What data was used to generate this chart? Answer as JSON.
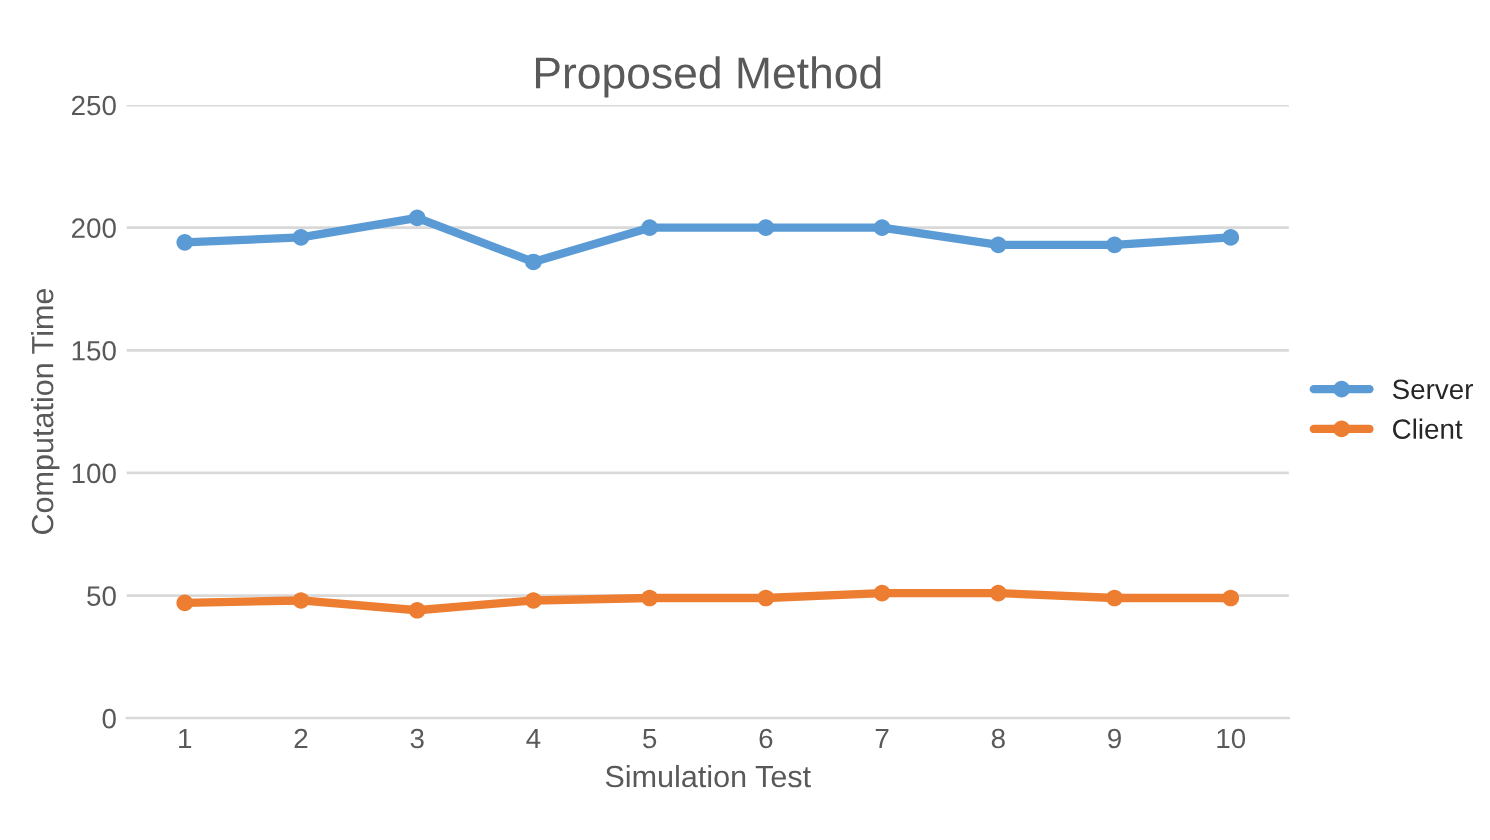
{
  "chart_data": {
    "type": "line",
    "title": "Proposed Method",
    "xlabel": "Simulation Test",
    "ylabel": "Computation Time",
    "categories": [
      "1",
      "2",
      "3",
      "4",
      "5",
      "6",
      "7",
      "8",
      "9",
      "10"
    ],
    "series": [
      {
        "name": "Server",
        "color": "#5b9bd5",
        "values": [
          194,
          196,
          204,
          186,
          200,
          200,
          200,
          193,
          193,
          196
        ]
      },
      {
        "name": "Client",
        "color": "#ed7d31",
        "values": [
          47,
          48,
          44,
          48,
          49,
          49,
          51,
          51,
          49,
          49
        ]
      }
    ],
    "ylim": [
      0,
      250
    ],
    "yticks": [
      0,
      50,
      100,
      150,
      200,
      250
    ],
    "grid": "y",
    "legend": "right",
    "marker": "circle",
    "line_style": "solid"
  }
}
